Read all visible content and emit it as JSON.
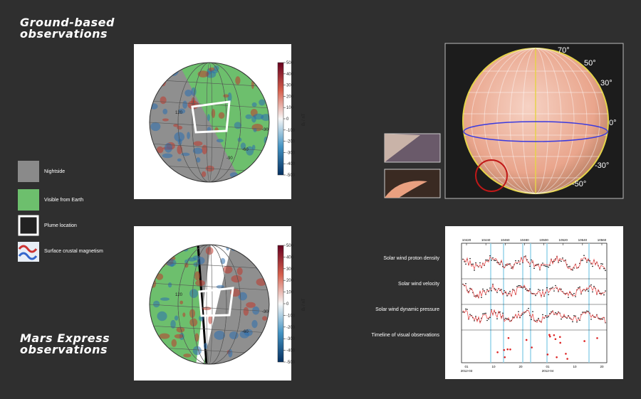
{
  "titles": {
    "ground": "Ground-based observations",
    "express": "Mars Express observations"
  },
  "legend": [
    "Nightside",
    "Visible from Earth",
    "Plume location",
    "Surface crustal magnetism"
  ],
  "maps": [
    {
      "colorbar_label": "Bᵣ / nT",
      "colorbar_ticks": [
        500,
        400,
        300,
        200,
        100,
        0,
        -100,
        -200,
        -300,
        -400,
        -500
      ],
      "grid_labels": [
        "120",
        "-30",
        "-60",
        "-90"
      ]
    },
    {
      "colorbar_label": "Bᵣ / nT",
      "colorbar_ticks": [
        500,
        400,
        300,
        200,
        100,
        0,
        -100,
        -200,
        -300,
        -400,
        -500
      ],
      "grid_labels": [
        "120",
        "-30",
        "-60"
      ]
    }
  ],
  "mars_image": {
    "latitude_labels": [
      "70°",
      "50°",
      "30°",
      "0°",
      "-30°",
      "-50°"
    ]
  },
  "timeline": {
    "panel_labels": [
      "Solar wind proton density",
      "Solar wind velocity",
      "Solar wind dynamic pressure",
      "Timeline of visual observations"
    ],
    "orbit_ticks": [
      10420,
      10440,
      10460,
      10480,
      10500,
      10520,
      10540,
      10560
    ],
    "day_ticks": [
      "01",
      "10",
      "20",
      "01",
      "10",
      "20"
    ],
    "month_labels": [
      "2012-03",
      "2012-04"
    ]
  }
}
